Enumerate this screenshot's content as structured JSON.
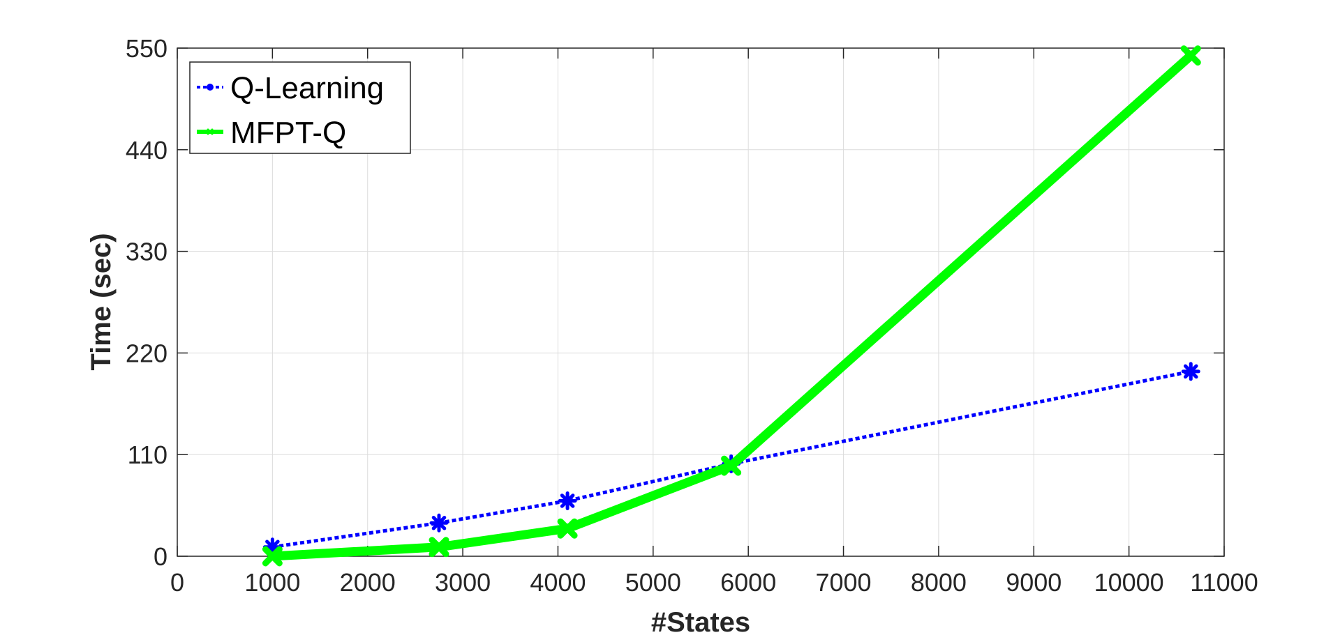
{
  "chart_data": {
    "type": "line",
    "title": "",
    "xlabel": "#States",
    "ylabel": "Time (sec)",
    "xlim": [
      0,
      11000
    ],
    "ylim": [
      0,
      550
    ],
    "xticks": [
      0,
      1000,
      2000,
      3000,
      4000,
      5000,
      6000,
      7000,
      8000,
      9000,
      10000,
      11000
    ],
    "yticks": [
      0,
      110,
      220,
      330,
      440,
      550
    ],
    "xtick_labels": [
      "0",
      "1000",
      "2000",
      "3000",
      "4000",
      "5000",
      "6000",
      "7000",
      "8000",
      "9000",
      "10000",
      "11000"
    ],
    "ytick_labels": [
      "0",
      "110",
      "220",
      "330",
      "440",
      "550"
    ],
    "grid": true,
    "legend_position": "top-left",
    "series": [
      {
        "name": "Q-Learning",
        "color": "#0000ff",
        "line_style": "dotted",
        "marker": "asterisk",
        "x": [
          1000,
          2750,
          4100,
          5820,
          10650
        ],
        "y": [
          10,
          36,
          60,
          100,
          200
        ]
      },
      {
        "name": "MFPT-Q",
        "color": "#00ff00",
        "line_style": "solid",
        "marker": "x",
        "x": [
          1000,
          2750,
          4100,
          5820,
          10650
        ],
        "y": [
          0,
          10,
          30,
          98,
          542
        ]
      }
    ]
  }
}
